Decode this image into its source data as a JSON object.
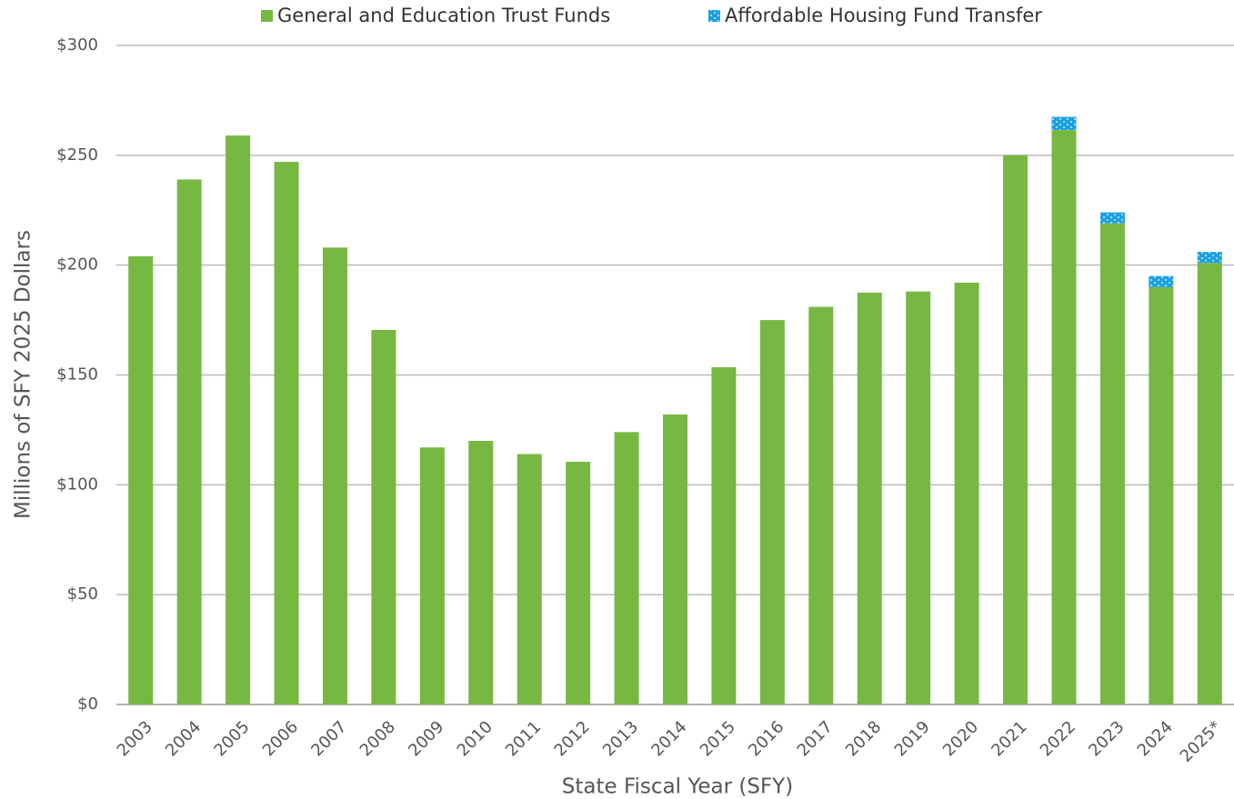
{
  "chart_data": {
    "type": "stacked-bar",
    "x_label": "State Fiscal Year (SFY)",
    "y_label": "Millions of SFY 2025 Dollars",
    "categories": [
      "2003",
      "2004",
      "2005",
      "2006",
      "2007",
      "2008",
      "2009",
      "2010",
      "2011",
      "2012",
      "2013",
      "2014",
      "2015",
      "2016",
      "2017",
      "2018",
      "2019",
      "2020",
      "2021",
      "2022",
      "2023",
      "2024",
      "2025*"
    ],
    "series": [
      {
        "name": "General and Education Trust Funds",
        "color": "#77b843",
        "values": [
          204,
          239,
          259,
          247,
          208,
          170.5,
          117,
          120,
          114,
          110.5,
          124,
          132,
          153.5,
          175,
          181,
          187.5,
          188,
          192,
          250,
          261.5,
          219,
          190,
          201
        ]
      },
      {
        "name": "Affordable Housing Fund Transfer",
        "color": "#1ba1e2",
        "values": [
          null,
          null,
          null,
          null,
          null,
          null,
          null,
          null,
          null,
          null,
          null,
          null,
          null,
          null,
          null,
          null,
          null,
          null,
          null,
          6,
          5,
          5,
          5
        ]
      }
    ],
    "ylim": [
      0,
      300
    ],
    "yticks": [
      {
        "value": 0,
        "label": "$0"
      },
      {
        "value": 50,
        "label": "$50"
      },
      {
        "value": 100,
        "label": "$100"
      },
      {
        "value": 150,
        "label": "$150"
      },
      {
        "value": 200,
        "label": "$200"
      },
      {
        "value": 250,
        "label": "$250"
      },
      {
        "value": 300,
        "label": "$300"
      }
    ],
    "grid": true,
    "legend": "top"
  }
}
